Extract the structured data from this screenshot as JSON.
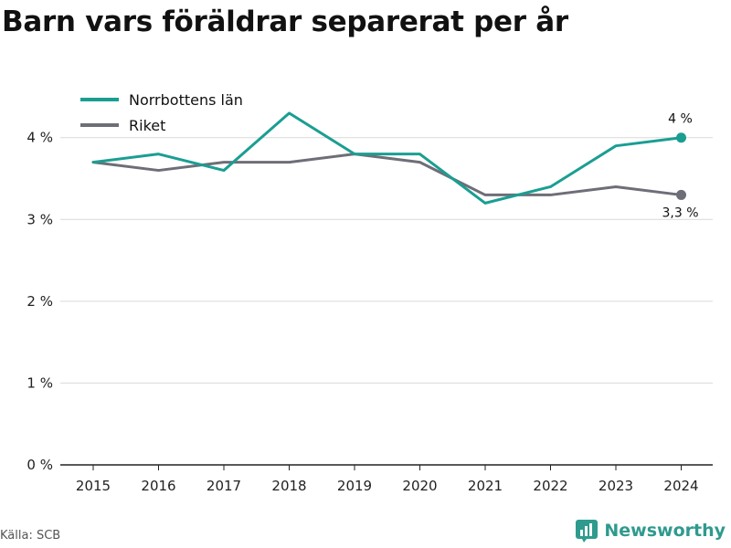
{
  "chart_data": {
    "type": "line",
    "title": "Barn vars föräldrar separerat per år",
    "x": [
      "2015",
      "2016",
      "2017",
      "2018",
      "2019",
      "2020",
      "2021",
      "2022",
      "2023",
      "2024"
    ],
    "series": [
      {
        "name": "Norrbottens län",
        "color": "#1a9e92",
        "values": [
          3.7,
          3.8,
          3.6,
          4.3,
          3.8,
          3.8,
          3.2,
          3.4,
          3.9,
          4.0
        ],
        "end_label": "4 %"
      },
      {
        "name": "Riket",
        "color": "#6e6e78",
        "values": [
          3.7,
          3.6,
          3.7,
          3.7,
          3.8,
          3.7,
          3.3,
          3.3,
          3.4,
          3.3
        ],
        "end_label": "3,3 %"
      }
    ],
    "y_ticks": [
      {
        "value": 0,
        "label": "0 %"
      },
      {
        "value": 1,
        "label": "1 %"
      },
      {
        "value": 2,
        "label": "2 %"
      },
      {
        "value": 3,
        "label": "3 %"
      },
      {
        "value": 4,
        "label": "4 %"
      }
    ],
    "ylim": [
      0,
      4.6
    ],
    "grid": true,
    "legend_position": "top-left"
  },
  "footer": {
    "source": "Källa: SCB",
    "brand": "Newsworthy"
  }
}
